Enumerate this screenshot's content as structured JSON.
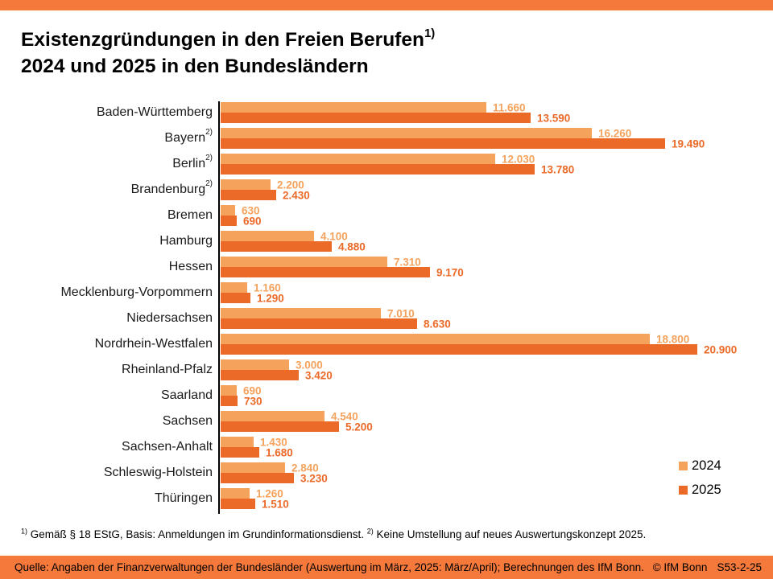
{
  "page": {
    "background_color": "#FFFFFF",
    "accent_band_color": "#F4793B"
  },
  "header": {
    "title_line1": "Existenzgründungen in den Freien Berufen",
    "title_sup": "1)",
    "title_line2": "2024 und 2025 in den Bundesländern"
  },
  "chart_data": {
    "type": "bar",
    "orientation": "horizontal",
    "title": "Existenzgründungen in den Freien Berufen 2024 und 2025 in den Bundesländern",
    "categories": [
      "Baden-Württemberg",
      "Bayern",
      "Berlin",
      "Brandenburg",
      "Bremen",
      "Hamburg",
      "Hessen",
      "Mecklenburg-Vorpommern",
      "Niedersachsen",
      "Nordrhein-Westfalen",
      "Rheinland-Pfalz",
      "Saarland",
      "Sachsen",
      "Sachsen-Anhalt",
      "Schleswig-Holstein",
      "Thüringen"
    ],
    "category_footnote_marks": [
      "",
      "2)",
      "2)",
      "2)",
      "",
      "",
      "",
      "",
      "",
      "",
      "",
      "",
      "",
      "",
      "",
      ""
    ],
    "xlim": [
      0,
      20900
    ],
    "grid": false,
    "legend_position": "bottom-right",
    "series": [
      {
        "name": "2024",
        "color": "#F4A25C",
        "values": [
          11660,
          16260,
          12030,
          2200,
          630,
          4100,
          7310,
          1160,
          7010,
          18800,
          3000,
          690,
          4540,
          1430,
          2840,
          1260
        ],
        "labels": [
          "11.660",
          "16.260",
          "12.030",
          "2.200",
          "630",
          "4.100",
          "7.310",
          "1.160",
          "7.010",
          "18.800",
          "3.000",
          "690",
          "4.540",
          "1.430",
          "2.840",
          "1.260"
        ]
      },
      {
        "name": "2025",
        "color": "#EC6A28",
        "values": [
          13590,
          19490,
          13780,
          2430,
          690,
          4880,
          9170,
          1290,
          8630,
          20900,
          3420,
          730,
          5200,
          1680,
          3230,
          1510
        ],
        "labels": [
          "13.590",
          "19.490",
          "13.780",
          "2.430",
          "690",
          "4.880",
          "9.170",
          "1.290",
          "8.630",
          "20.900",
          "3.420",
          "730",
          "5.200",
          "1.680",
          "3.230",
          "1.510"
        ]
      }
    ]
  },
  "footnotes": {
    "fn1_mark": "1)",
    "fn1_text": "Gemäß § 18 EStG, Basis: Anmeldungen im Grundinformationsdienst.",
    "fn2_mark": "2)",
    "fn2_text": "Keine Umstellung auf neues Auswertungskonzept 2025."
  },
  "footer": {
    "source": "Quelle: Angaben der Finanzverwaltungen der Bundesländer (Auswertung im März, 2025: März/April); Berechnungen des IfM Bonn.",
    "copyright": "© IfM Bonn",
    "code": "S53-2-25"
  }
}
